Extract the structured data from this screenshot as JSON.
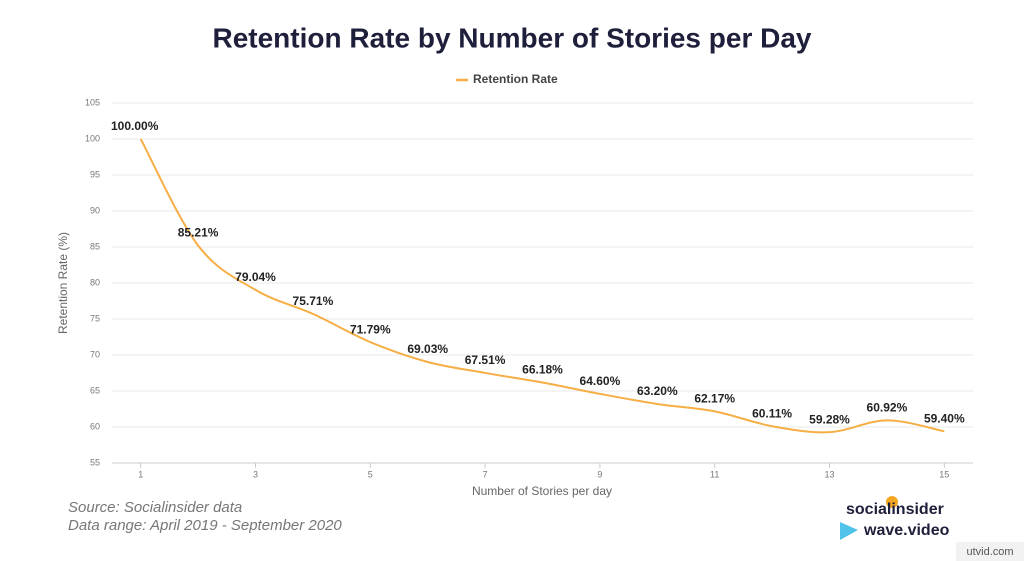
{
  "chart_data": {
    "type": "line",
    "title": "Retention Rate by Number of Stories per Day",
    "x_label": "Number of Stories per day",
    "y_label": "Retention Rate (%)",
    "x": [
      1,
      2,
      3,
      4,
      5,
      6,
      7,
      8,
      9,
      10,
      11,
      12,
      13,
      14,
      15
    ],
    "series": [
      {
        "name": "Retention Rate",
        "color": "#f6ae45",
        "values": [
          100,
          85.21,
          79.04,
          75.71,
          71.79,
          69.03,
          67.51,
          66.18,
          64.6,
          63.2,
          62.17,
          60.11,
          59.28,
          60.92,
          59.4
        ],
        "value_labels": [
          "100.00%",
          "85.21%",
          "79.04%",
          "75.71%",
          "71.79%",
          "69.03%",
          "67.51%",
          "66.18%",
          "64.60%",
          "63.20%",
          "62.17%",
          "60.11%",
          "59.28%",
          "60.92%",
          "59.40%"
        ]
      }
    ],
    "xlim": [
      0.5,
      15.5
    ],
    "xticks": [
      1,
      3,
      5,
      7,
      9,
      11,
      13,
      15
    ],
    "ylim": [
      55,
      105
    ],
    "yticks": [
      55,
      60,
      65,
      70,
      75,
      80,
      85,
      90,
      95,
      100,
      105
    ],
    "grid": true,
    "legend": "top",
    "smooth": true
  },
  "footer": {
    "source": "Source: Socialinsider data",
    "range": "Data range: April 2019 - September 2020",
    "logo1": "socialinsider",
    "logo2": "wave.video",
    "watermark": "utvid.com"
  }
}
